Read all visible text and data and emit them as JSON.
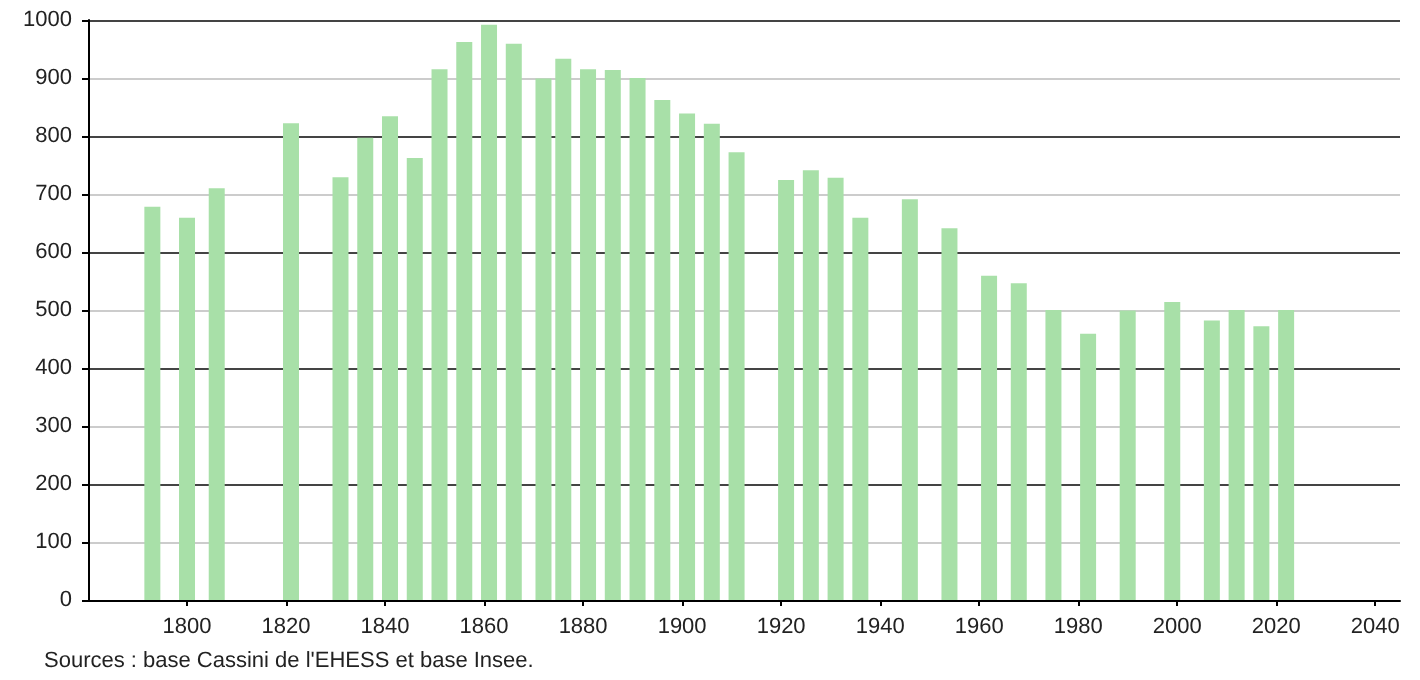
{
  "chart_data": {
    "type": "bar",
    "x": [
      1793,
      1800,
      1806,
      1821,
      1831,
      1836,
      1841,
      1846,
      1851,
      1856,
      1861,
      1866,
      1872,
      1876,
      1881,
      1886,
      1891,
      1896,
      1901,
      1906,
      1911,
      1921,
      1926,
      1931,
      1936,
      1946,
      1954,
      1962,
      1968,
      1975,
      1982,
      1990,
      1999,
      2007,
      2012,
      2017,
      2022
    ],
    "values": [
      678,
      659,
      710,
      822,
      729,
      797,
      834,
      762,
      915,
      962,
      992,
      959,
      899,
      933,
      915,
      914,
      900,
      862,
      839,
      821,
      772,
      724,
      741,
      728,
      659,
      691,
      641,
      559,
      546,
      500,
      459,
      499,
      514,
      482,
      500,
      472,
      500
    ],
    "color": "#a8e0a8",
    "xlim": [
      1780,
      2045
    ],
    "xticks": [
      1800,
      1820,
      1840,
      1860,
      1880,
      1900,
      1920,
      1940,
      1960,
      1980,
      2000,
      2020,
      2040
    ],
    "ylim": [
      0,
      1000
    ],
    "yticks": [
      0,
      100,
      200,
      300,
      400,
      500,
      600,
      700,
      800,
      900,
      1000
    ],
    "grid": "y",
    "annotations": [
      "Sources : base Cassini de l'EHESS et base Insee."
    ]
  }
}
